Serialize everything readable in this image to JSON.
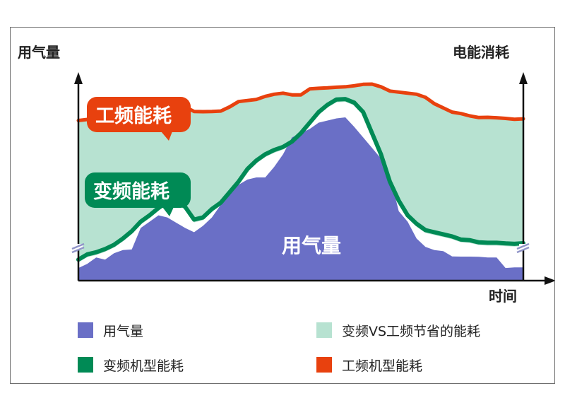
{
  "chart_data": {
    "type": "area",
    "title": "",
    "y_axis_left_label": "用气量",
    "y_axis_right_label": "电能消耗",
    "x_axis_label": "时间",
    "area_inner_label": "用气量",
    "callouts": {
      "fixed": "工频能耗",
      "variable": "变频能耗"
    },
    "x": [
      0,
      2,
      4,
      6,
      8,
      10,
      12,
      14,
      16,
      18,
      20,
      22,
      24,
      26,
      28,
      30,
      32,
      34,
      36,
      38,
      40,
      42,
      44,
      46,
      48,
      50,
      52,
      54,
      56,
      58,
      60,
      62,
      64,
      66,
      68,
      70,
      72,
      74,
      76,
      78,
      80,
      82,
      84,
      86,
      88,
      90,
      92,
      94,
      96,
      98,
      100
    ],
    "series": [
      {
        "name": "工频机型能耗",
        "color": "#e8410e",
        "values": [
          76,
          76.5,
          76.8,
          77.5,
          78,
          80.5,
          78.8,
          78.3,
          78.8,
          81.3,
          82,
          83,
          82.5,
          80.3,
          80.2,
          80.3,
          80.5,
          82.5,
          85,
          85.5,
          86,
          87.5,
          88.5,
          89,
          88.2,
          88.2,
          91,
          91.3,
          91.5,
          91.8,
          92,
          92.5,
          93.2,
          93.3,
          92,
          90,
          89.5,
          89,
          88.5,
          87,
          84,
          82,
          80,
          79.3,
          78.2,
          77.4,
          77.5,
          77.3,
          77,
          76.6,
          76.8
        ]
      },
      {
        "name": "变频机型能耗",
        "color": "#008a55",
        "values": [
          10,
          12.5,
          13.5,
          15,
          17,
          20,
          23.5,
          28,
          31,
          34.5,
          37.5,
          38,
          35,
          29,
          30,
          34,
          37,
          42,
          47,
          53,
          57,
          60,
          62,
          63.5,
          66,
          70,
          75,
          80,
          83.5,
          86,
          86.2,
          84.5,
          80,
          70,
          60,
          47,
          38,
          31,
          27,
          24,
          23,
          22,
          21,
          19.5,
          19.2,
          18.2,
          18,
          18,
          17.7,
          17.5,
          17.8
        ]
      },
      {
        "name": "用气量",
        "color": "#6a6fc6",
        "values": [
          6,
          8,
          11,
          10,
          13,
          14.5,
          14.8,
          25,
          28,
          31,
          30,
          27.5,
          25,
          23,
          26,
          30,
          36,
          42,
          45.5,
          48,
          49,
          49,
          54,
          60,
          68,
          70,
          72,
          75,
          76,
          77,
          77.5,
          73,
          68,
          63,
          58,
          50,
          33,
          28,
          20,
          16,
          14.5,
          14,
          11.5,
          11.4,
          11.4,
          11.3,
          11,
          11,
          6,
          6.3,
          6.3
        ]
      }
    ],
    "legend": [
      {
        "label": "用气量",
        "color": "#6a6fc6"
      },
      {
        "label": "变频VS工频节省的能耗",
        "color": "#b7e2d1"
      },
      {
        "label": "变频机型能耗",
        "color": "#008a55"
      },
      {
        "label": "工频机型能耗",
        "color": "#e8410e"
      }
    ],
    "savings_color": "#b7e2d1",
    "gap_color": "#ffffff",
    "axis_color": "#111111",
    "break_mark_color": "#9094c8",
    "grid": false,
    "legend_position": "bottom"
  }
}
